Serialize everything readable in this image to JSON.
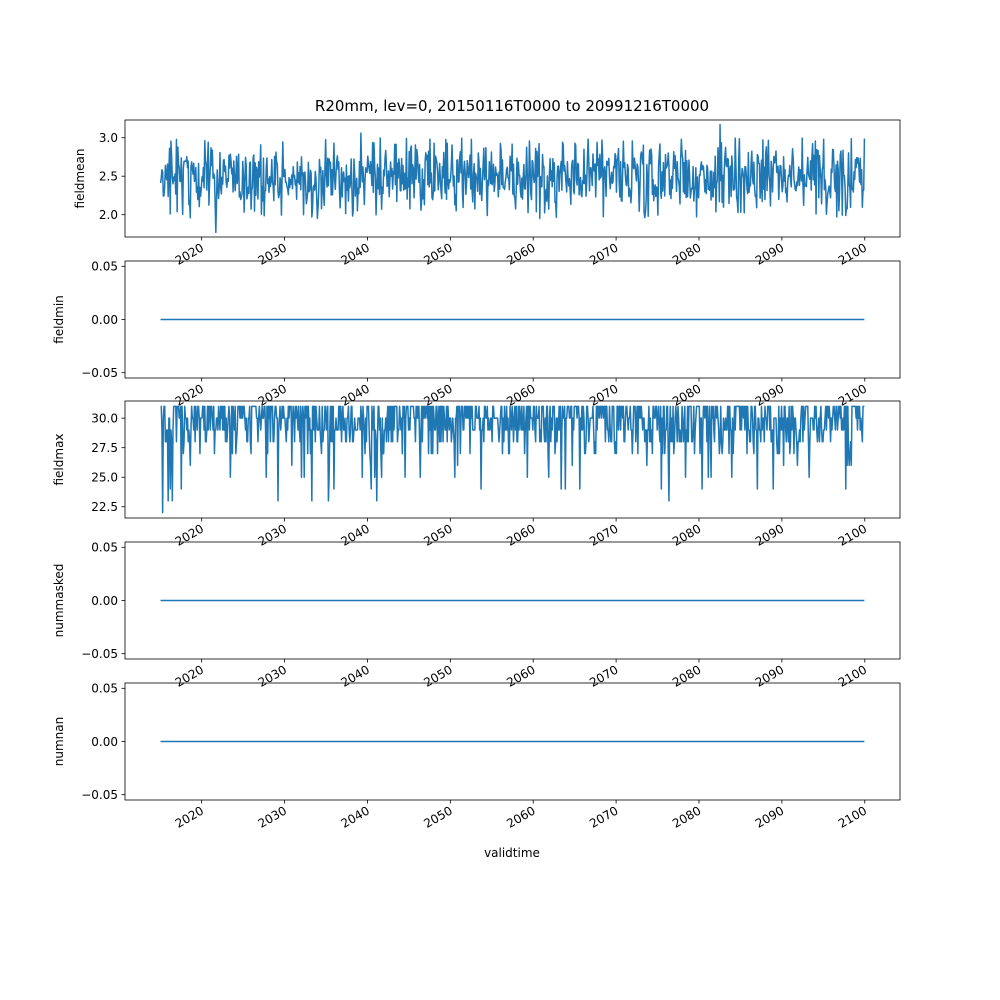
{
  "chart_data": {
    "type": "line",
    "title": "R20mm, lev=0, 20150116T0000 to 20991216T0000",
    "xlabel": "validtime",
    "x_range": [
      "2015-01-16",
      "2099-12-16"
    ],
    "x_tick_labels": [
      "2020",
      "2030",
      "2040",
      "2050",
      "2060",
      "2070",
      "2080",
      "2090",
      "2100"
    ],
    "x_tick_years": [
      2020,
      2030,
      2040,
      2050,
      2060,
      2070,
      2080,
      2090,
      2100
    ],
    "xlim_years": [
      2010.75,
      2104.25
    ],
    "color": "#1f77b4",
    "grid": false,
    "sharex": true,
    "panels": [
      {
        "ylabel": "fieldmean",
        "ylim": [
          1.71,
          3.23
        ],
        "yticks": [
          2.0,
          2.5,
          3.0
        ],
        "ytick_labels": [
          "2.0",
          "2.5",
          "3.0"
        ],
        "y_min": 1.77,
        "y_max": 3.17,
        "y_typical": [
          2.1,
          2.9
        ],
        "series_name": "fieldmean"
      },
      {
        "ylabel": "fieldmin",
        "ylim": [
          -0.055,
          0.055
        ],
        "yticks": [
          -0.05,
          0.0,
          0.05
        ],
        "ytick_labels": [
          "−0.05",
          "0.00",
          "0.05"
        ],
        "constant_value": 0.0,
        "series_name": "fieldmin"
      },
      {
        "ylabel": "fieldmax",
        "ylim": [
          21.55,
          31.45
        ],
        "yticks": [
          22.5,
          25.0,
          27.5,
          30.0
        ],
        "ytick_labels": [
          "22.5",
          "25.0",
          "27.5",
          "30.0"
        ],
        "y_min": 22.0,
        "y_max": 31.0,
        "y_typical": [
          27.0,
          31.0
        ],
        "series_name": "fieldmax"
      },
      {
        "ylabel": "nummasked",
        "ylim": [
          -0.055,
          0.055
        ],
        "yticks": [
          -0.05,
          0.0,
          0.05
        ],
        "ytick_labels": [
          "−0.05",
          "0.00",
          "0.05"
        ],
        "constant_value": 0.0,
        "series_name": "nummasked"
      },
      {
        "ylabel": "numnan",
        "ylim": [
          -0.055,
          0.055
        ],
        "yticks": [
          -0.05,
          0.0,
          0.05
        ],
        "ytick_labels": [
          "−0.05",
          "0.00",
          "0.05"
        ],
        "constant_value": 0.0,
        "series_name": "numnan"
      }
    ]
  }
}
